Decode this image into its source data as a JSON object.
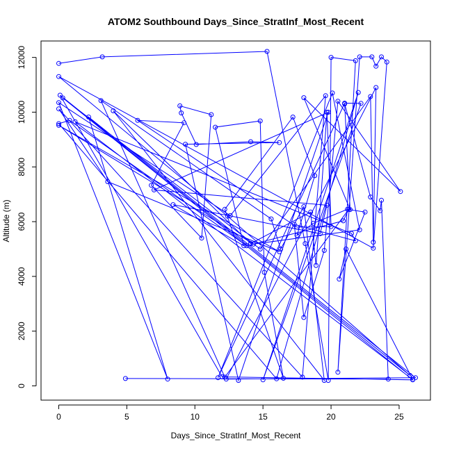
{
  "chart_data": {
    "type": "scatter",
    "title": "ATOM2 Southbound Days_Since_StratInf_Most_Recent",
    "xlabel": "Days_Since_StratInf_Most_Recent",
    "ylabel": "Altitude (m)",
    "xlim": [
      -1.3,
      27.3
    ],
    "ylim": [
      -520,
      12600
    ],
    "xticks": [
      0,
      5,
      10,
      15,
      20,
      25
    ],
    "yticks": [
      0,
      2000,
      4000,
      6000,
      8000,
      10000,
      12000
    ],
    "grid": false,
    "legend": "none",
    "series_color": "#0000ff",
    "marker": "open-circle",
    "connected": true,
    "series": [
      {
        "points": [
          [
            0.0,
            11780
          ],
          [
            3.2,
            12020
          ],
          [
            15.3,
            12220
          ],
          [
            18.1,
            5200
          ],
          [
            19.8,
            200
          ],
          [
            20.0,
            12000
          ],
          [
            21.8,
            11880
          ],
          [
            20.5,
            500
          ],
          [
            22.1,
            12020
          ],
          [
            23.0,
            12020
          ],
          [
            23.3,
            11680
          ],
          [
            23.7,
            12020
          ],
          [
            24.1,
            11830
          ],
          [
            23.1,
            5030
          ],
          [
            0.0,
            11300
          ],
          [
            12.4,
            6200
          ],
          [
            25.8,
            380
          ],
          [
            0.1,
            10620
          ],
          [
            12.0,
            330
          ],
          [
            26.0,
            220
          ],
          [
            0.3,
            10520
          ],
          [
            14.8,
            5000
          ],
          [
            22.9,
            10570
          ],
          [
            23.1,
            5250
          ],
          [
            23.3,
            10900
          ],
          [
            12.3,
            250
          ],
          [
            26.2,
            300
          ],
          [
            2.2,
            9820
          ],
          [
            8.0,
            250
          ],
          [
            0.0,
            10350
          ],
          [
            12.6,
            6220
          ],
          [
            19.6,
            10600
          ],
          [
            17.9,
            320
          ],
          [
            0.0,
            10120
          ],
          [
            3.6,
            7460
          ],
          [
            16.2,
            4900
          ],
          [
            0.0,
            9520
          ],
          [
            14.3,
            5180
          ],
          [
            22.1,
            5700
          ],
          [
            20.1,
            10700
          ],
          [
            11.7,
            300
          ],
          [
            21.0,
            10330
          ],
          [
            22.2,
            10320
          ],
          [
            15.0,
            220
          ],
          [
            22.0,
            10720
          ],
          [
            16.0,
            260
          ],
          [
            0.0,
            9580
          ],
          [
            0.8,
            9700
          ],
          [
            13.8,
            5120
          ],
          [
            20.9,
            6030
          ],
          [
            21.3,
            6450
          ],
          [
            12.2,
            320
          ],
          [
            3.1,
            10420
          ],
          [
            15.6,
            6100
          ],
          [
            16.3,
            5000
          ],
          [
            18.0,
            6550
          ],
          [
            19.5,
            200
          ],
          [
            4.0,
            10050
          ],
          [
            14.1,
            5200
          ],
          [
            18.5,
            6350
          ],
          [
            18.9,
            4400
          ],
          [
            19.7,
            9990
          ],
          [
            20.0,
            5820
          ],
          [
            17.5,
            5800
          ],
          [
            5.8,
            9700
          ],
          [
            9.2,
            9610
          ],
          [
            6.8,
            7330
          ],
          [
            10.5,
            5400
          ],
          [
            11.2,
            9910
          ],
          [
            8.9,
            10230
          ],
          [
            9.0,
            9970
          ],
          [
            10.1,
            8820
          ],
          [
            14.1,
            8920
          ],
          [
            16.2,
            8890
          ],
          [
            9.3,
            8830
          ],
          [
            13.2,
            200
          ],
          [
            19.8,
            10000
          ],
          [
            7.0,
            7160
          ],
          [
            19.7,
            6600
          ],
          [
            19.2,
            5560
          ],
          [
            8.4,
            6620
          ],
          [
            13.6,
            5120
          ],
          [
            11.5,
            9450
          ],
          [
            14.8,
            9680
          ],
          [
            15.1,
            4150
          ],
          [
            16.5,
            280
          ],
          [
            12.2,
            6450
          ],
          [
            17.2,
            9820
          ],
          [
            18.8,
            7680
          ],
          [
            17.5,
            5500
          ],
          [
            18.7,
            5940
          ],
          [
            21.2,
            6450
          ],
          [
            22.5,
            6350
          ],
          [
            20.6,
            3900
          ],
          [
            21.1,
            5000
          ],
          [
            26.0,
            230
          ],
          [
            1.2,
            9650
          ],
          [
            21.5,
            5570
          ],
          [
            21.8,
            5300
          ],
          [
            17.3,
            5900
          ],
          [
            18.0,
            2500
          ],
          [
            19.5,
            4950
          ],
          [
            20.5,
            10400
          ],
          [
            25.1,
            7100
          ],
          [
            18.0,
            10530
          ],
          [
            21.4,
            6440
          ],
          [
            21.0,
            10300
          ],
          [
            22.9,
            6900
          ],
          [
            23.6,
            6400
          ],
          [
            23.7,
            6780
          ],
          [
            24.2,
            250
          ],
          [
            4.9,
            270
          ]
        ]
      }
    ]
  }
}
